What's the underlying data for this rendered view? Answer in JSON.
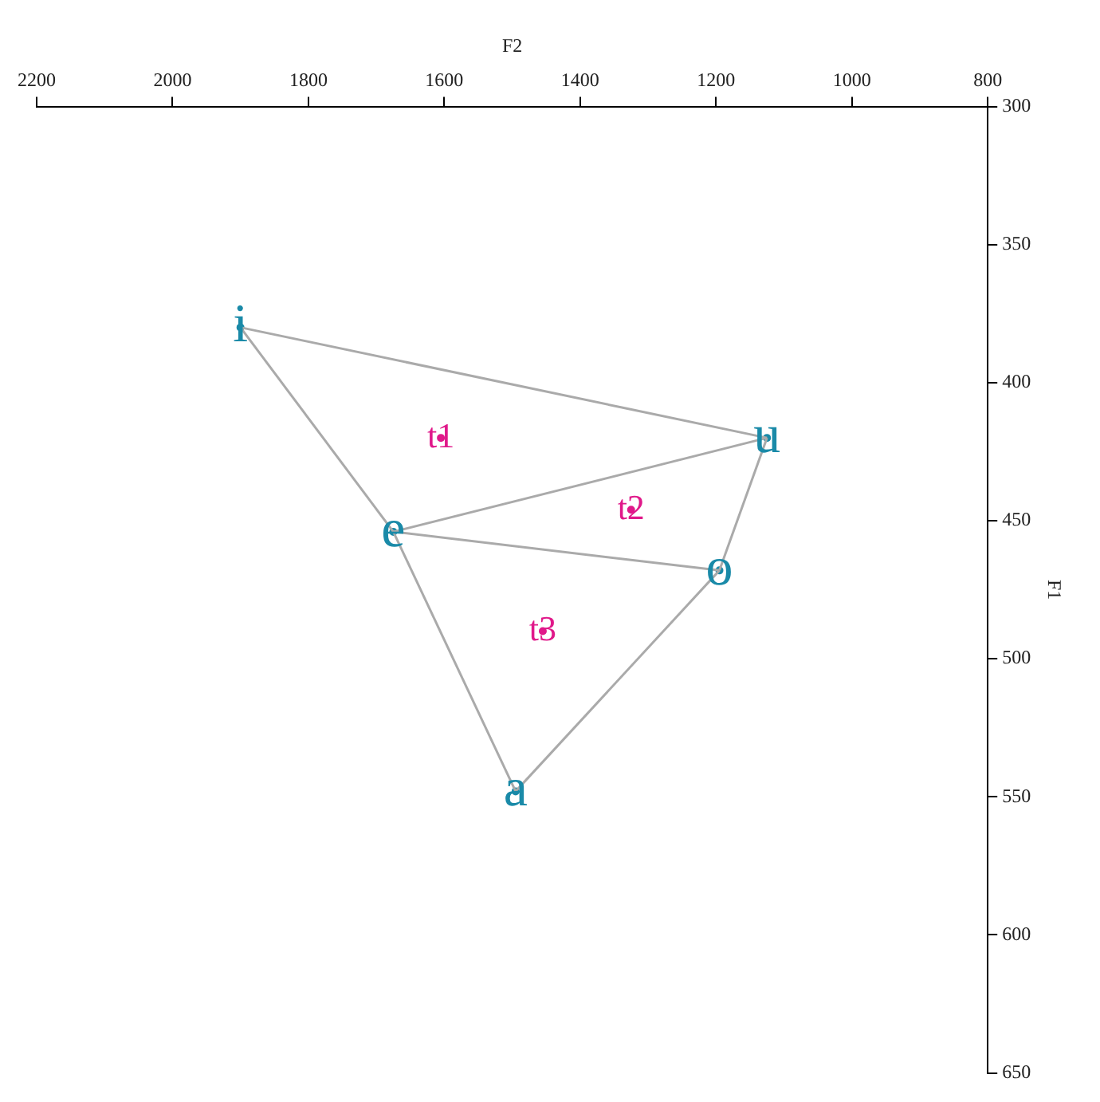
{
  "chart_data": {
    "type": "line",
    "xlabel": "F2",
    "ylabel": "F1",
    "xlim": [
      2200,
      800
    ],
    "ylim": [
      650,
      300
    ],
    "xticks": [
      2200,
      2000,
      1800,
      1600,
      1400,
      1200,
      1000,
      800
    ],
    "yticks": [
      300,
      350,
      400,
      450,
      500,
      550,
      600,
      650
    ],
    "grid": false,
    "legend": false,
    "marker": "none",
    "line_style": "solid",
    "series": [
      {
        "color": "#aaaaaa",
        "x": [
          1900,
          1125
        ],
        "values": [
          380,
          420
        ]
      },
      {
        "color": "#aaaaaa",
        "x": [
          1900,
          1675
        ],
        "values": [
          380,
          454
        ]
      },
      {
        "color": "#aaaaaa",
        "x": [
          1675,
          1125
        ],
        "values": [
          454,
          420
        ]
      },
      {
        "color": "#aaaaaa",
        "x": [
          1675,
          1195
        ],
        "values": [
          454,
          468
        ]
      },
      {
        "color": "#aaaaaa",
        "x": [
          1675,
          1495
        ],
        "values": [
          454,
          548
        ]
      },
      {
        "color": "#aaaaaa",
        "x": [
          1495,
          1195
        ],
        "values": [
          548,
          468
        ]
      },
      {
        "color": "#aaaaaa",
        "x": [
          1195,
          1125
        ],
        "values": [
          468,
          420
        ]
      },
      {
        "type": "scatter",
        "marker": "circle",
        "color": "#1a8aa8",
        "x": [
          1900,
          1675,
          1495,
          1195,
          1125
        ],
        "values": [
          380,
          454,
          548,
          468,
          420
        ],
        "value_labels": [
          "i",
          "e",
          "a",
          "o",
          "u"
        ]
      },
      {
        "type": "scatter",
        "marker": "circle",
        "color": "#e0198a",
        "x": [
          1605,
          1325,
          1455
        ],
        "values": [
          420,
          446,
          490
        ],
        "value_labels": [
          "t1",
          "t2",
          "t3"
        ]
      }
    ]
  }
}
